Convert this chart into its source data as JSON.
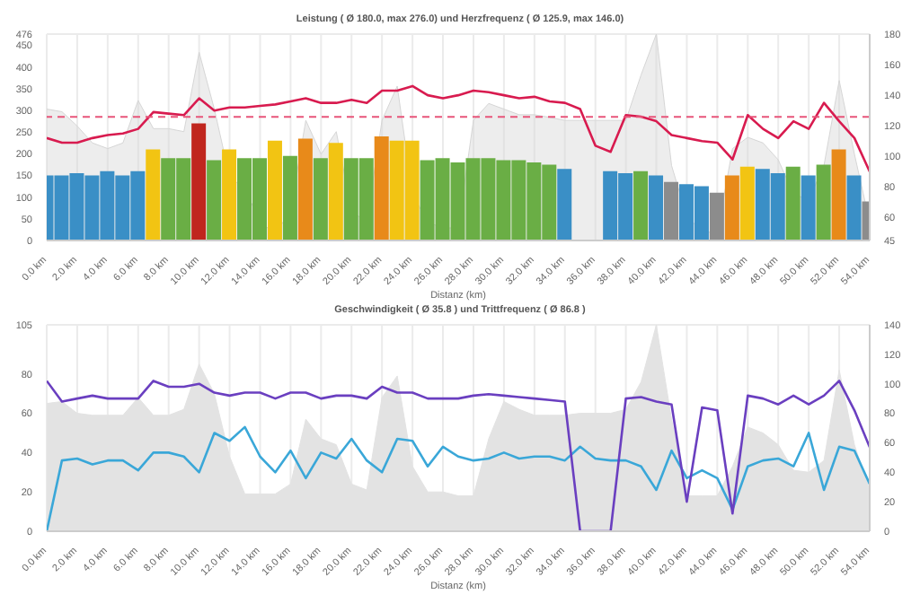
{
  "chart_data": [
    {
      "type": "bar",
      "title": "Leistung ( Ø 180.0, max 276.0) und Herzfrequenz ( Ø 125.9, max 146.0)",
      "xlabel": "Distanz (km)",
      "x": [
        0,
        1,
        2,
        3,
        4,
        5,
        6,
        7,
        8,
        9,
        10,
        11,
        12,
        13,
        14,
        15,
        16,
        17,
        18,
        19,
        20,
        21,
        22,
        23,
        24,
        25,
        26,
        27,
        28,
        29,
        30,
        31,
        32,
        33,
        34,
        35,
        36,
        37,
        38,
        39,
        40,
        41,
        42,
        43,
        44,
        45,
        46,
        47,
        48,
        49,
        50,
        51,
        52,
        53,
        54
      ],
      "series": [
        {
          "type": "area",
          "color": "#d6d6d6",
          "values": [
            303,
            297,
            264,
            225,
            212,
            225,
            323,
            258,
            258,
            251,
            434,
            303,
            146,
            120,
            42,
            16,
            68,
            277,
            199,
            251,
            68,
            42,
            277,
            356,
            107,
            42,
            29,
            29,
            277,
            316,
            303,
            290,
            290,
            284,
            277,
            277,
            277,
            277,
            277,
            382,
            476,
            173,
            55,
            22,
            16,
            212,
            238,
            225,
            186,
            107,
            94,
            173,
            369,
            199,
            42
          ]
        },
        {
          "colors": [
            "#3a8fc6",
            "#3a8fc6",
            "#3a8fc6",
            "#3a8fc6",
            "#3a8fc6",
            "#3a8fc6",
            "#3a8fc6",
            "#f2c413",
            "#6aae45",
            "#6aae45",
            "#c0261e",
            "#6aae45",
            "#f2c413",
            "#6aae45",
            "#6aae45",
            "#f2c413",
            "#6aae45",
            "#e88a1a",
            "#6aae45",
            "#f2c413",
            "#6aae45",
            "#6aae45",
            "#e88a1a",
            "#f2c413",
            "#f2c413",
            "#6aae45",
            "#6aae45",
            "#6aae45",
            "#6aae45",
            "#6aae45",
            "#6aae45",
            "#6aae45",
            "#6aae45",
            "#6aae45",
            "#3a8fc6",
            "#3a8fc6",
            "#3a8fc6",
            "#3a8fc6",
            "#3a8fc6",
            "#6aae45",
            "#3a8fc6",
            "#8c8c8c",
            "#3a8fc6",
            "#3a8fc6",
            "#8c8c8c",
            "#e88a1a",
            "#f2c413",
            "#3a8fc6",
            "#3a8fc6",
            "#6aae45",
            "#3a8fc6",
            "#6aae45",
            "#e88a1a",
            "#3a8fc6",
            "#8c8c8c"
          ],
          "values": [
            150,
            150,
            155,
            150,
            160,
            150,
            160,
            210,
            190,
            190,
            270,
            185,
            210,
            190,
            190,
            230,
            195,
            235,
            190,
            225,
            190,
            190,
            240,
            230,
            230,
            185,
            190,
            180,
            190,
            190,
            185,
            185,
            180,
            175,
            165,
            0,
            0,
            160,
            155,
            160,
            150,
            135,
            130,
            125,
            110,
            150,
            170,
            165,
            155,
            170,
            150,
            175,
            210,
            150,
            90
          ]
        },
        {
          "type": "line",
          "axis": "y2",
          "color": "#d81b4f",
          "values": [
            112,
            109,
            109,
            112,
            114,
            115,
            118,
            129,
            128,
            127,
            138,
            130,
            132,
            132,
            133,
            134,
            136,
            138,
            135,
            135,
            137,
            135,
            143,
            143,
            146,
            140,
            138,
            140,
            143,
            142,
            140,
            138,
            139,
            136,
            135,
            131,
            107,
            103,
            127,
            126,
            123,
            114,
            112,
            110,
            109,
            98,
            127,
            118,
            112,
            123,
            118,
            135,
            123,
            112,
            90
          ]
        }
      ],
      "xlim": [
        0,
        54
      ],
      "xticks": [
        {
          "value": 0,
          "label": "0.0 km"
        },
        {
          "value": 2,
          "label": "2.0 km"
        },
        {
          "value": 4,
          "label": "4.0 km"
        },
        {
          "value": 6,
          "label": "6.0 km"
        },
        {
          "value": 8,
          "label": "8.0 km"
        },
        {
          "value": 10,
          "label": "10.0 km"
        },
        {
          "value": 12,
          "label": "12.0 km"
        },
        {
          "value": 14,
          "label": "14.0 km"
        },
        {
          "value": 16,
          "label": "16.0 km"
        },
        {
          "value": 18,
          "label": "18.0 km"
        },
        {
          "value": 20,
          "label": "20.0 km"
        },
        {
          "value": 22,
          "label": "22.0 km"
        },
        {
          "value": 24,
          "label": "24.0 km"
        },
        {
          "value": 26,
          "label": "26.0 km"
        },
        {
          "value": 28,
          "label": "28.0 km"
        },
        {
          "value": 30,
          "label": "30.0 km"
        },
        {
          "value": 32,
          "label": "32.0 km"
        },
        {
          "value": 34,
          "label": "34.0 km"
        },
        {
          "value": 36,
          "label": "36.0 km"
        },
        {
          "value": 38,
          "label": "38.0 km"
        },
        {
          "value": 40,
          "label": "40.0 km"
        },
        {
          "value": 42,
          "label": "42.0 km"
        },
        {
          "value": 44,
          "label": "44.0 km"
        },
        {
          "value": 46,
          "label": "46.0 km"
        },
        {
          "value": 48,
          "label": "48.0 km"
        },
        {
          "value": 50,
          "label": "50.0 km"
        },
        {
          "value": 52,
          "label": "52.0 km"
        },
        {
          "value": 54,
          "label": "54.0 km"
        }
      ],
      "ylim": [
        0,
        476
      ],
      "yticks": [
        0,
        50,
        100,
        150,
        200,
        250,
        300,
        350,
        400,
        450,
        476
      ],
      "y2lim": [
        45,
        180
      ],
      "y2ticks": [
        45,
        60,
        80,
        100,
        120,
        140,
        160,
        180
      ],
      "ref_lines": [
        {
          "axis": "y2",
          "value": 125.9,
          "color": "#e8557a",
          "line_style": "dashed"
        }
      ],
      "grid": true,
      "marker": "none"
    },
    {
      "type": "line",
      "title": "Geschwindigkeit ( Ø 35.8 ) und Trittfrequenz ( Ø 86.8 )",
      "xlabel": "Distanz (km)",
      "x": [
        0,
        1,
        2,
        3,
        4,
        5,
        6,
        7,
        8,
        9,
        10,
        11,
        12,
        13,
        14,
        15,
        16,
        17,
        18,
        19,
        20,
        21,
        22,
        23,
        24,
        25,
        26,
        27,
        28,
        29,
        30,
        31,
        32,
        33,
        34,
        35,
        36,
        37,
        38,
        39,
        40,
        41,
        42,
        43,
        44,
        45,
        46,
        47,
        48,
        49,
        50,
        51,
        52,
        53,
        54
      ],
      "series": [
        {
          "type": "area",
          "color": "#e3e3e3",
          "values": [
            65,
            66,
            60,
            59,
            59,
            59,
            68,
            59,
            59,
            62,
            85,
            70,
            38,
            19,
            19,
            19,
            24,
            57,
            47,
            44,
            24,
            21,
            68,
            79,
            33,
            20,
            20,
            18,
            18,
            47,
            66,
            62,
            59,
            59,
            59,
            60,
            60,
            60,
            62,
            76,
            105,
            57,
            18,
            18,
            18,
            33,
            53,
            50,
            44,
            31,
            30,
            36,
            82,
            44,
            21
          ]
        },
        {
          "color": "#3aa7d8",
          "values": [
            0,
            36,
            37,
            34,
            36,
            36,
            31,
            40,
            40,
            38,
            30,
            50,
            46,
            53,
            38,
            30,
            41,
            27,
            40,
            37,
            47,
            36,
            30,
            47,
            46,
            33,
            43,
            38,
            36,
            37,
            40,
            37,
            38,
            38,
            36,
            43,
            37,
            36,
            36,
            33,
            21,
            41,
            27,
            31,
            27,
            11,
            33,
            36,
            37,
            33,
            50,
            21,
            43,
            41,
            24
          ]
        },
        {
          "axis": "y2",
          "color": "#6a3fc0",
          "values": [
            102,
            88,
            90,
            92,
            90,
            90,
            90,
            102,
            98,
            98,
            100,
            94,
            92,
            94,
            94,
            90,
            94,
            94,
            90,
            92,
            92,
            90,
            98,
            94,
            94,
            90,
            90,
            90,
            92,
            93,
            92,
            91,
            90,
            89,
            88,
            0,
            0,
            0,
            90,
            91,
            88,
            86,
            20,
            84,
            82,
            12,
            92,
            90,
            86,
            92,
            86,
            92,
            102,
            82,
            57
          ]
        }
      ],
      "xlim": [
        0,
        54
      ],
      "xticks": [
        {
          "value": 0,
          "label": "0.0 km"
        },
        {
          "value": 2,
          "label": "2.0 km"
        },
        {
          "value": 4,
          "label": "4.0 km"
        },
        {
          "value": 6,
          "label": "6.0 km"
        },
        {
          "value": 8,
          "label": "8.0 km"
        },
        {
          "value": 10,
          "label": "10.0 km"
        },
        {
          "value": 12,
          "label": "12.0 km"
        },
        {
          "value": 14,
          "label": "14.0 km"
        },
        {
          "value": 16,
          "label": "16.0 km"
        },
        {
          "value": 18,
          "label": "18.0 km"
        },
        {
          "value": 20,
          "label": "20.0 km"
        },
        {
          "value": 22,
          "label": "22.0 km"
        },
        {
          "value": 24,
          "label": "24.0 km"
        },
        {
          "value": 26,
          "label": "26.0 km"
        },
        {
          "value": 28,
          "label": "28.0 km"
        },
        {
          "value": 30,
          "label": "30.0 km"
        },
        {
          "value": 32,
          "label": "32.0 km"
        },
        {
          "value": 34,
          "label": "34.0 km"
        },
        {
          "value": 36,
          "label": "36.0 km"
        },
        {
          "value": 38,
          "label": "38.0 km"
        },
        {
          "value": 40,
          "label": "40.0 km"
        },
        {
          "value": 42,
          "label": "42.0 km"
        },
        {
          "value": 44,
          "label": "44.0 km"
        },
        {
          "value": 46,
          "label": "46.0 km"
        },
        {
          "value": 48,
          "label": "48.0 km"
        },
        {
          "value": 50,
          "label": "50.0 km"
        },
        {
          "value": 52,
          "label": "52.0 km"
        },
        {
          "value": 54,
          "label": "54.0 km"
        }
      ],
      "ylim": [
        0,
        105
      ],
      "yticks": [
        0,
        20,
        40,
        60,
        80,
        105
      ],
      "y2lim": [
        0,
        140
      ],
      "y2ticks": [
        0,
        20,
        40,
        60,
        80,
        100,
        120,
        140
      ],
      "grid": true,
      "marker": "none"
    }
  ]
}
